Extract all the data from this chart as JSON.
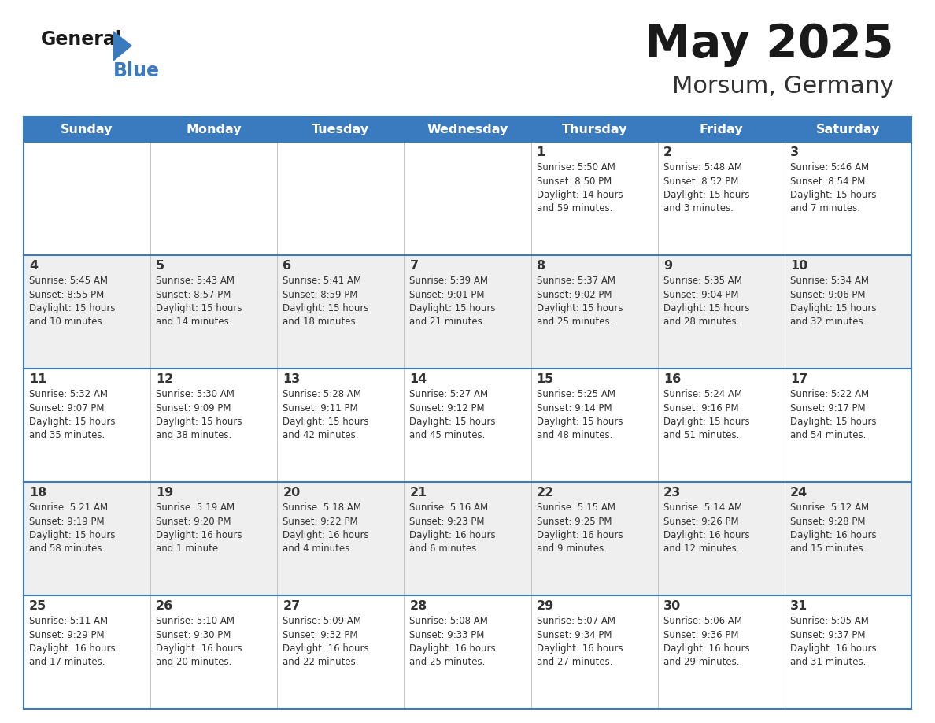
{
  "title": "May 2025",
  "subtitle": "Morsum, Germany",
  "days_of_week": [
    "Sunday",
    "Monday",
    "Tuesday",
    "Wednesday",
    "Thursday",
    "Friday",
    "Saturday"
  ],
  "header_bg": "#3a7abf",
  "header_text": "#ffffff",
  "row_bg_light": "#efefef",
  "row_bg_white": "#ffffff",
  "border_color": "#3a7abf",
  "day_number_color": "#333333",
  "info_text_color": "#333333",
  "title_color": "#1a1a1a",
  "subtitle_color": "#333333",
  "weeks": [
    [
      {
        "day": "",
        "info": ""
      },
      {
        "day": "",
        "info": ""
      },
      {
        "day": "",
        "info": ""
      },
      {
        "day": "",
        "info": ""
      },
      {
        "day": "1",
        "info": "Sunrise: 5:50 AM\nSunset: 8:50 PM\nDaylight: 14 hours\nand 59 minutes."
      },
      {
        "day": "2",
        "info": "Sunrise: 5:48 AM\nSunset: 8:52 PM\nDaylight: 15 hours\nand 3 minutes."
      },
      {
        "day": "3",
        "info": "Sunrise: 5:46 AM\nSunset: 8:54 PM\nDaylight: 15 hours\nand 7 minutes."
      }
    ],
    [
      {
        "day": "4",
        "info": "Sunrise: 5:45 AM\nSunset: 8:55 PM\nDaylight: 15 hours\nand 10 minutes."
      },
      {
        "day": "5",
        "info": "Sunrise: 5:43 AM\nSunset: 8:57 PM\nDaylight: 15 hours\nand 14 minutes."
      },
      {
        "day": "6",
        "info": "Sunrise: 5:41 AM\nSunset: 8:59 PM\nDaylight: 15 hours\nand 18 minutes."
      },
      {
        "day": "7",
        "info": "Sunrise: 5:39 AM\nSunset: 9:01 PM\nDaylight: 15 hours\nand 21 minutes."
      },
      {
        "day": "8",
        "info": "Sunrise: 5:37 AM\nSunset: 9:02 PM\nDaylight: 15 hours\nand 25 minutes."
      },
      {
        "day": "9",
        "info": "Sunrise: 5:35 AM\nSunset: 9:04 PM\nDaylight: 15 hours\nand 28 minutes."
      },
      {
        "day": "10",
        "info": "Sunrise: 5:34 AM\nSunset: 9:06 PM\nDaylight: 15 hours\nand 32 minutes."
      }
    ],
    [
      {
        "day": "11",
        "info": "Sunrise: 5:32 AM\nSunset: 9:07 PM\nDaylight: 15 hours\nand 35 minutes."
      },
      {
        "day": "12",
        "info": "Sunrise: 5:30 AM\nSunset: 9:09 PM\nDaylight: 15 hours\nand 38 minutes."
      },
      {
        "day": "13",
        "info": "Sunrise: 5:28 AM\nSunset: 9:11 PM\nDaylight: 15 hours\nand 42 minutes."
      },
      {
        "day": "14",
        "info": "Sunrise: 5:27 AM\nSunset: 9:12 PM\nDaylight: 15 hours\nand 45 minutes."
      },
      {
        "day": "15",
        "info": "Sunrise: 5:25 AM\nSunset: 9:14 PM\nDaylight: 15 hours\nand 48 minutes."
      },
      {
        "day": "16",
        "info": "Sunrise: 5:24 AM\nSunset: 9:16 PM\nDaylight: 15 hours\nand 51 minutes."
      },
      {
        "day": "17",
        "info": "Sunrise: 5:22 AM\nSunset: 9:17 PM\nDaylight: 15 hours\nand 54 minutes."
      }
    ],
    [
      {
        "day": "18",
        "info": "Sunrise: 5:21 AM\nSunset: 9:19 PM\nDaylight: 15 hours\nand 58 minutes."
      },
      {
        "day": "19",
        "info": "Sunrise: 5:19 AM\nSunset: 9:20 PM\nDaylight: 16 hours\nand 1 minute."
      },
      {
        "day": "20",
        "info": "Sunrise: 5:18 AM\nSunset: 9:22 PM\nDaylight: 16 hours\nand 4 minutes."
      },
      {
        "day": "21",
        "info": "Sunrise: 5:16 AM\nSunset: 9:23 PM\nDaylight: 16 hours\nand 6 minutes."
      },
      {
        "day": "22",
        "info": "Sunrise: 5:15 AM\nSunset: 9:25 PM\nDaylight: 16 hours\nand 9 minutes."
      },
      {
        "day": "23",
        "info": "Sunrise: 5:14 AM\nSunset: 9:26 PM\nDaylight: 16 hours\nand 12 minutes."
      },
      {
        "day": "24",
        "info": "Sunrise: 5:12 AM\nSunset: 9:28 PM\nDaylight: 16 hours\nand 15 minutes."
      }
    ],
    [
      {
        "day": "25",
        "info": "Sunrise: 5:11 AM\nSunset: 9:29 PM\nDaylight: 16 hours\nand 17 minutes."
      },
      {
        "day": "26",
        "info": "Sunrise: 5:10 AM\nSunset: 9:30 PM\nDaylight: 16 hours\nand 20 minutes."
      },
      {
        "day": "27",
        "info": "Sunrise: 5:09 AM\nSunset: 9:32 PM\nDaylight: 16 hours\nand 22 minutes."
      },
      {
        "day": "28",
        "info": "Sunrise: 5:08 AM\nSunset: 9:33 PM\nDaylight: 16 hours\nand 25 minutes."
      },
      {
        "day": "29",
        "info": "Sunrise: 5:07 AM\nSunset: 9:34 PM\nDaylight: 16 hours\nand 27 minutes."
      },
      {
        "day": "30",
        "info": "Sunrise: 5:06 AM\nSunset: 9:36 PM\nDaylight: 16 hours\nand 29 minutes."
      },
      {
        "day": "31",
        "info": "Sunrise: 5:05 AM\nSunset: 9:37 PM\nDaylight: 16 hours\nand 31 minutes."
      }
    ]
  ],
  "logo_general_color": "#1a1a1a",
  "logo_blue_color": "#3a7abf",
  "figsize": [
    11.88,
    9.18
  ],
  "dpi": 100
}
